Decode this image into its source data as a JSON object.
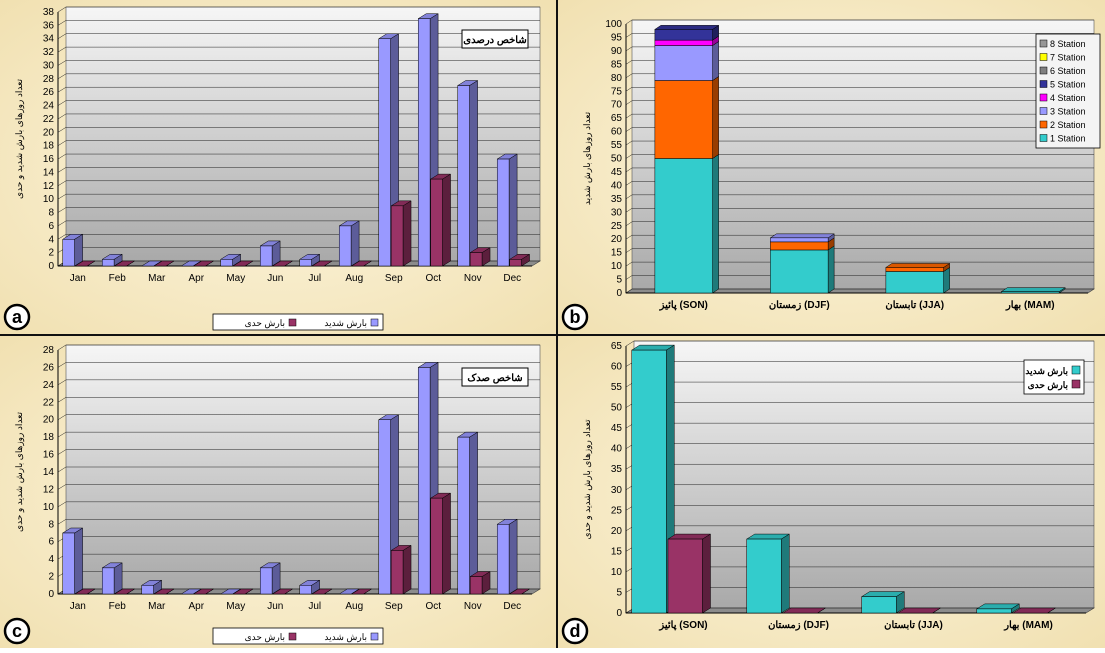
{
  "chart_data": [
    {
      "type": "bar",
      "panel": "a",
      "title": "شاخص درصدی",
      "ylabel": "تعداد روزهای بارش شدید و حدی",
      "ylim": [
        0,
        38
      ],
      "yticks": [
        0,
        2,
        4,
        6,
        8,
        10,
        12,
        14,
        16,
        18,
        20,
        22,
        24,
        26,
        28,
        30,
        32,
        34,
        36,
        38
      ],
      "categories": [
        "Jan",
        "Feb",
        "Mar",
        "Apr",
        "May",
        "Jun",
        "Jul",
        "Aug",
        "Sep",
        "Oct",
        "Nov",
        "Dec"
      ],
      "series": [
        {
          "name": "بارش شدید",
          "color": "#9999ff",
          "values": [
            4,
            1,
            0,
            0,
            1,
            3,
            1,
            6,
            34,
            37,
            27,
            16
          ]
        },
        {
          "name": "بارش حدی",
          "color": "#993366",
          "values": [
            0,
            0,
            0,
            0,
            0,
            0,
            0,
            0,
            9,
            13,
            2,
            1
          ]
        }
      ],
      "legend": "bottom"
    },
    {
      "type": "bar",
      "stacked": true,
      "panel": "b",
      "ylabel": "تعداد روزهای بارش شدید",
      "ylim": [
        0,
        100
      ],
      "yticks": [
        0,
        5,
        10,
        15,
        20,
        25,
        30,
        35,
        40,
        45,
        50,
        55,
        60,
        65,
        70,
        75,
        80,
        85,
        90,
        95,
        100
      ],
      "categories": [
        "پائیز (SON)",
        "زمستان (DJF)",
        "تابستان (JJA)",
        "بهار (MAM)"
      ],
      "series": [
        {
          "name": "1   Station",
          "color": "#33cccc",
          "values": [
            50,
            16,
            8,
            0.5
          ]
        },
        {
          "name": "2  Station",
          "color": "#ff6600",
          "values": [
            29,
            3,
            1.5,
            0
          ]
        },
        {
          "name": "3  Station",
          "color": "#9999ff",
          "values": [
            13,
            1.5,
            0,
            0
          ]
        },
        {
          "name": "4  Station",
          "color": "#ff00ff",
          "values": [
            2,
            0,
            0,
            0
          ]
        },
        {
          "name": "5  Station",
          "color": "#333399",
          "values": [
            4,
            0,
            0,
            0
          ]
        },
        {
          "name": "6  Station",
          "color": "#808080",
          "values": [
            0,
            0,
            0,
            0
          ]
        },
        {
          "name": "7  Station",
          "color": "#ffff00",
          "values": [
            0,
            0,
            0,
            0
          ]
        },
        {
          "name": "8  Station",
          "color": "#969696",
          "values": [
            0,
            0,
            0,
            0
          ]
        }
      ],
      "legend": "top-right"
    },
    {
      "type": "bar",
      "panel": "c",
      "title": "شاخص صدک",
      "ylabel": "تعداد روزهای بارش شدید و حدی",
      "ylim": [
        0,
        28
      ],
      "yticks": [
        0,
        2,
        4,
        6,
        8,
        10,
        12,
        14,
        16,
        18,
        20,
        22,
        24,
        26,
        28
      ],
      "categories": [
        "Jan",
        "Feb",
        "Mar",
        "Apr",
        "May",
        "Jun",
        "Jul",
        "Aug",
        "Sep",
        "Oct",
        "Nov",
        "Dec"
      ],
      "series": [
        {
          "name": "بارش شدید",
          "color": "#9999ff",
          "values": [
            7,
            3,
            1,
            0,
            0,
            3,
            1,
            0,
            20,
            26,
            18,
            8
          ]
        },
        {
          "name": "بارش حدی",
          "color": "#993366",
          "values": [
            0,
            0,
            0,
            0,
            0,
            0,
            0,
            0,
            5,
            11,
            2,
            0
          ]
        }
      ],
      "legend": "bottom"
    },
    {
      "type": "bar",
      "panel": "d",
      "ylabel": "تعداد روزهای بارش شدید و حدی",
      "ylim": [
        0,
        65
      ],
      "yticks": [
        0,
        5,
        10,
        15,
        20,
        25,
        30,
        35,
        40,
        45,
        50,
        55,
        60,
        65
      ],
      "categories": [
        "پائیز (SON)",
        "زمستان (DJF)",
        "تابستان (JJA)",
        "بهار (MAM)"
      ],
      "series": [
        {
          "name": "بارش شدید",
          "color": "#33cccc",
          "values": [
            64,
            18,
            4,
            1
          ]
        },
        {
          "name": "بارش حدی",
          "color": "#993366",
          "values": [
            18,
            0,
            0,
            0
          ]
        }
      ],
      "legend": "top-right"
    }
  ]
}
